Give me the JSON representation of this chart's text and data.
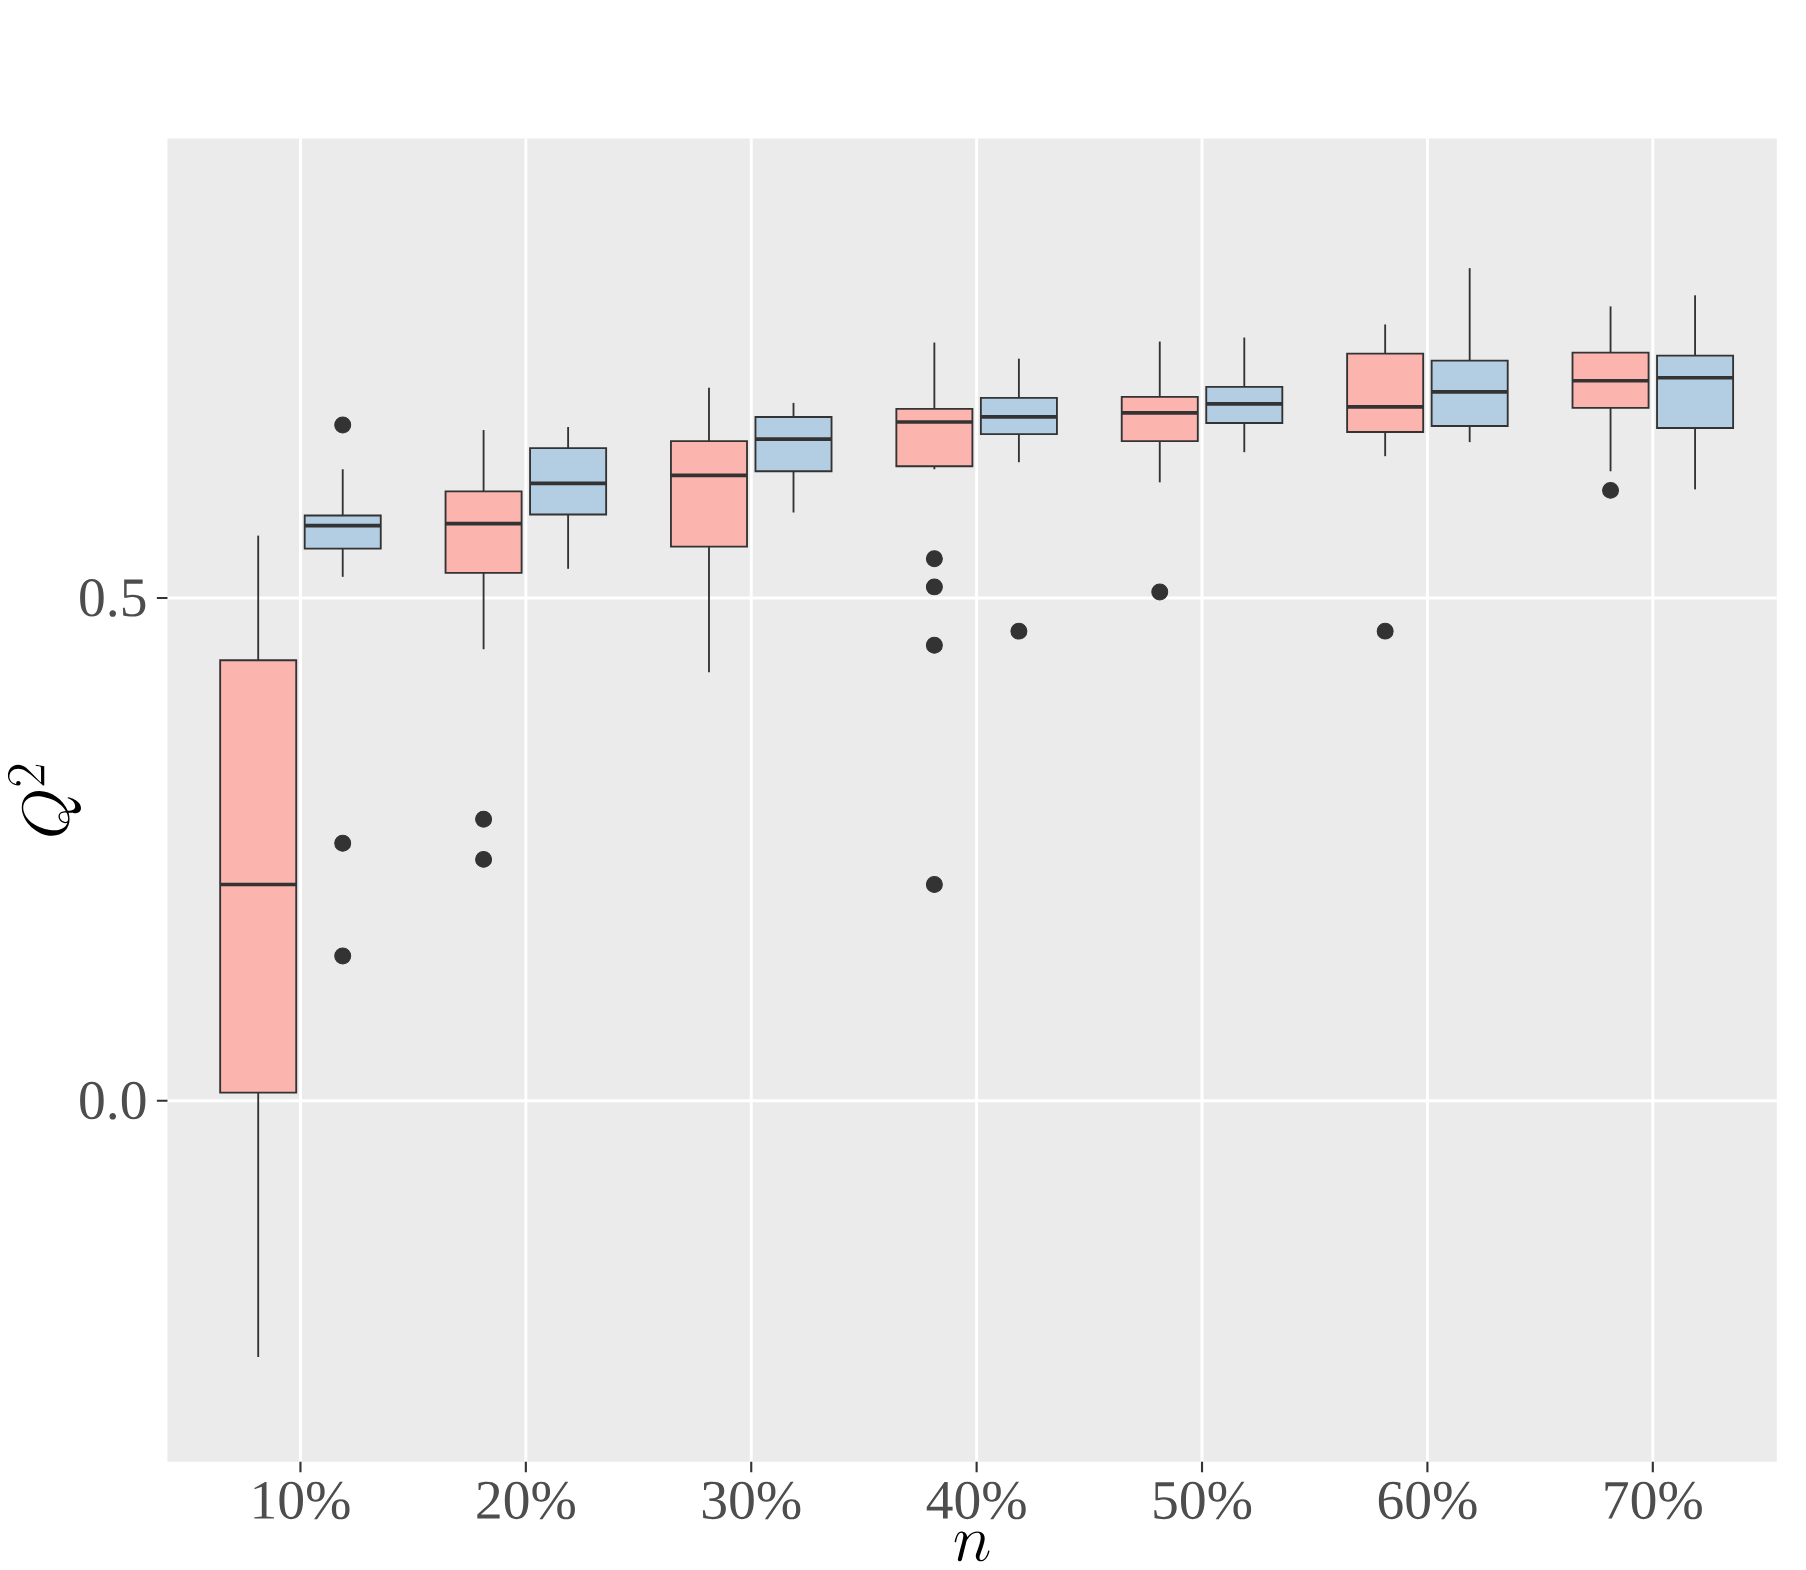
{
  "chart_data": {
    "type": "box",
    "xlabel": "n",
    "ylabel": "Q^2",
    "categories": [
      "10%",
      "20%",
      "30%",
      "40%",
      "50%",
      "60%",
      "70%"
    ],
    "ylim": [
      -0.359,
      0.957
    ],
    "yticks": [
      {
        "value": 0,
        "label": "0.0"
      },
      {
        "value": 0.5,
        "label": "0.5"
      }
    ],
    "grid": true,
    "series": [
      {
        "color": "#fbb4ae",
        "boxes": [
          {
            "low": -0.255,
            "q1": 0.008,
            "median": 0.215,
            "q3": 0.438,
            "high": 0.562
          },
          {
            "low": 0.449,
            "q1": 0.525,
            "median": 0.574,
            "q3": 0.606,
            "high": 0.667,
            "outliers": [
              0.28,
              0.24
            ]
          },
          {
            "low": 0.426,
            "q1": 0.551,
            "median": 0.622,
            "q3": 0.656,
            "high": 0.709
          },
          {
            "low": 0.628,
            "q1": 0.631,
            "median": 0.675,
            "q3": 0.688,
            "high": 0.754,
            "outliers": [
              0.539,
              0.511,
              0.453,
              0.215
            ]
          },
          {
            "low": 0.615,
            "q1": 0.656,
            "median": 0.684,
            "q3": 0.7,
            "high": 0.755,
            "outliers": [
              0.506
            ]
          },
          {
            "low": 0.641,
            "q1": 0.665,
            "median": 0.69,
            "q3": 0.743,
            "high": 0.772,
            "outliers": [
              0.467
            ]
          },
          {
            "low": 0.626,
            "q1": 0.689,
            "median": 0.716,
            "q3": 0.744,
            "high": 0.79,
            "outliers": [
              0.607
            ]
          }
        ]
      },
      {
        "color": "#b3cde3",
        "boxes": [
          {
            "low": 0.521,
            "q1": 0.549,
            "median": 0.572,
            "q3": 0.582,
            "high": 0.628,
            "outliers": [
              0.672,
              0.256,
              0.144
            ]
          },
          {
            "low": 0.529,
            "q1": 0.583,
            "median": 0.614,
            "q3": 0.649,
            "high": 0.67
          },
          {
            "low": 0.585,
            "q1": 0.626,
            "median": 0.658,
            "q3": 0.68,
            "high": 0.694
          },
          {
            "low": 0.635,
            "q1": 0.663,
            "median": 0.68,
            "q3": 0.699,
            "high": 0.738,
            "outliers": [
              0.467
            ]
          },
          {
            "low": 0.645,
            "q1": 0.674,
            "median": 0.693,
            "q3": 0.71,
            "high": 0.759
          },
          {
            "low": 0.655,
            "q1": 0.671,
            "median": 0.705,
            "q3": 0.736,
            "high": 0.828
          },
          {
            "low": 0.608,
            "q1": 0.669,
            "median": 0.719,
            "q3": 0.741,
            "high": 0.801
          }
        ]
      }
    ]
  }
}
